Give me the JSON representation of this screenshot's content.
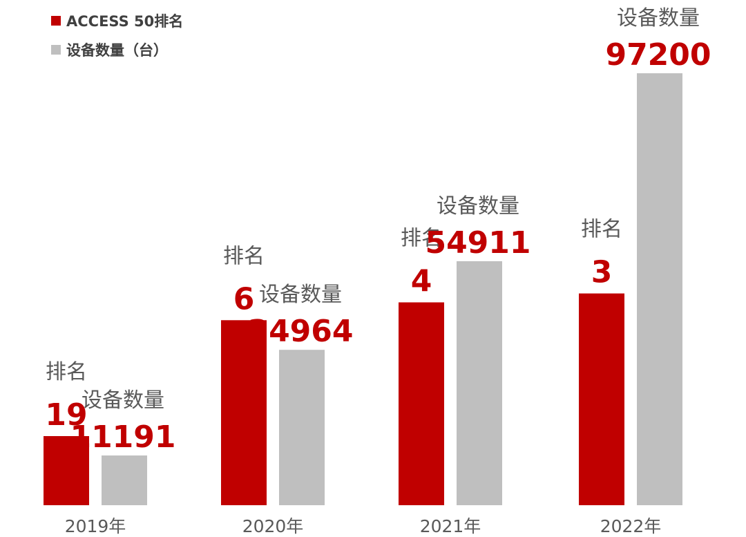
{
  "legend": [
    {
      "label": "ACCESS 50排名",
      "color": "#c00000"
    },
    {
      "label": "设备数量（台）",
      "color": "#bfbfbf"
    }
  ],
  "colors": {
    "rank": "#c00000",
    "device": "#bfbfbf",
    "value_text": "#c00000",
    "label_text": "#595959"
  },
  "chart_data": {
    "type": "bar",
    "categories": [
      "2019年",
      "2020年",
      "2021年",
      "2022年"
    ],
    "series": [
      {
        "name": "ACCESS 50排名",
        "values": [
          19,
          6,
          4,
          3
        ]
      },
      {
        "name": "设备数量（台）",
        "values": [
          11191,
          34964,
          54911,
          97200
        ]
      }
    ],
    "annotation_labels": {
      "rank": "排名",
      "device": "设备数量"
    },
    "title": "",
    "xlabel": "",
    "ylabel": "",
    "grid": false,
    "legend_position": "top-left"
  }
}
